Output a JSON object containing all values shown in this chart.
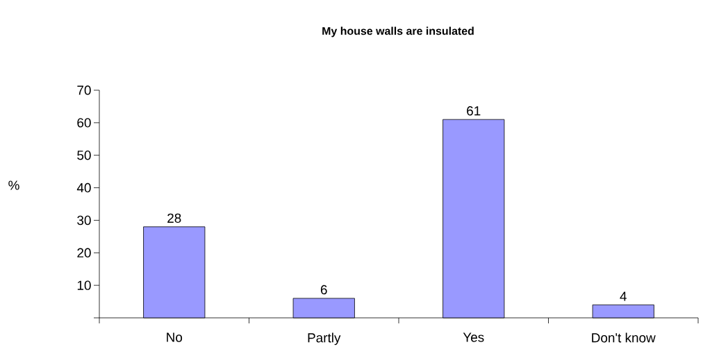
{
  "chart_data": {
    "type": "bar",
    "title": "My house walls are insulated",
    "ylabel": "%",
    "categories": [
      "No",
      "Partly",
      "Yes",
      "Don't know"
    ],
    "values": [
      28,
      6,
      61,
      4
    ],
    "color": "#9999ff",
    "ylim": [
      0,
      70
    ],
    "yticks": [
      {
        "value": 0,
        "label": null
      },
      10,
      20,
      30,
      40,
      50,
      60,
      70
    ],
    "data_labels": true,
    "grid": false
  }
}
